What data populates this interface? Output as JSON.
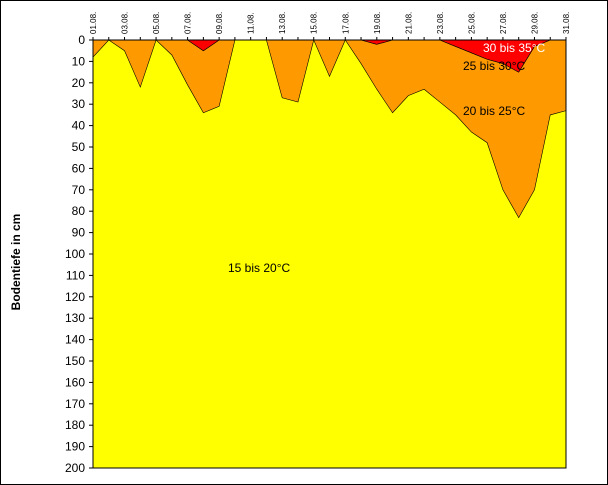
{
  "chart_data": {
    "type": "area",
    "title": "",
    "ylabel": "Bodentiefe in cm",
    "xlabel": "",
    "x_ticks": [
      "01.08.",
      "03.08.",
      "05.08.",
      "07.08.",
      "09.08.",
      "11.08.",
      "13.08.",
      "15.08.",
      "17.08.",
      "19.08.",
      "21.08.",
      "23.08.",
      "25.08.",
      "27.08.",
      "29.08.",
      "31.08."
    ],
    "y_ticks": [
      0,
      10,
      20,
      30,
      40,
      50,
      60,
      70,
      80,
      90,
      100,
      110,
      120,
      130,
      140,
      150,
      160,
      170,
      180,
      190,
      200
    ],
    "ylim": [
      0,
      200
    ],
    "y_inverted": true,
    "x_range": [
      "01.08.",
      "31.08."
    ],
    "days": [
      "01.08.",
      "02.08.",
      "03.08.",
      "04.08.",
      "05.08.",
      "06.08.",
      "07.08.",
      "08.08.",
      "09.08.",
      "10.08.",
      "11.08.",
      "12.08.",
      "13.08.",
      "14.08.",
      "15.08.",
      "16.08.",
      "17.08.",
      "18.08.",
      "19.08.",
      "20.08.",
      "21.08.",
      "22.08.",
      "23.08.",
      "24.08.",
      "25.08.",
      "26.08.",
      "27.08.",
      "28.08.",
      "29.08.",
      "30.08.",
      "31.08."
    ],
    "series": [
      {
        "name": "30 bis 35°C",
        "color": "#ff0000",
        "depth_lower": [
          0,
          0,
          0,
          0,
          0,
          0,
          0,
          5,
          0,
          0,
          0,
          0,
          0,
          0,
          0,
          0,
          0,
          0,
          2,
          0,
          0,
          0,
          0,
          3,
          6,
          9,
          11,
          15,
          3,
          0,
          0
        ]
      },
      {
        "name": "25 bis 30°C",
        "color": "#ff9900",
        "depth_lower": [
          0,
          0,
          0,
          0,
          0,
          0,
          0,
          5,
          0,
          0,
          0,
          0,
          0,
          0,
          0,
          0,
          0,
          0,
          2,
          0,
          0,
          0,
          0,
          3,
          6,
          9,
          11,
          15,
          3,
          0,
          0
        ]
      },
      {
        "name": "20 bis 25°C",
        "color": "#ff9900",
        "depth_lower": [
          8,
          0,
          5,
          22,
          0,
          7,
          21,
          34,
          31,
          0,
          0,
          0,
          27,
          29,
          0,
          17,
          0,
          11,
          23,
          34,
          26,
          23,
          29,
          35,
          43,
          48,
          70,
          83,
          70,
          35,
          33
        ]
      },
      {
        "name": "15 bis 20°C",
        "color": "#ffff00",
        "depth_lower": [
          200,
          200,
          200,
          200,
          200,
          200,
          200,
          200,
          200,
          200,
          200,
          200,
          200,
          200,
          200,
          200,
          200,
          200,
          200,
          200,
          200,
          200,
          200,
          200,
          200,
          200,
          200,
          200,
          200,
          200,
          200
        ]
      }
    ],
    "labels": [
      "30 bis 35°C",
      "25 bis 30°C",
      "20 bis 25°C",
      "15 bis 20°C"
    ],
    "grid": false,
    "legend": "none"
  }
}
